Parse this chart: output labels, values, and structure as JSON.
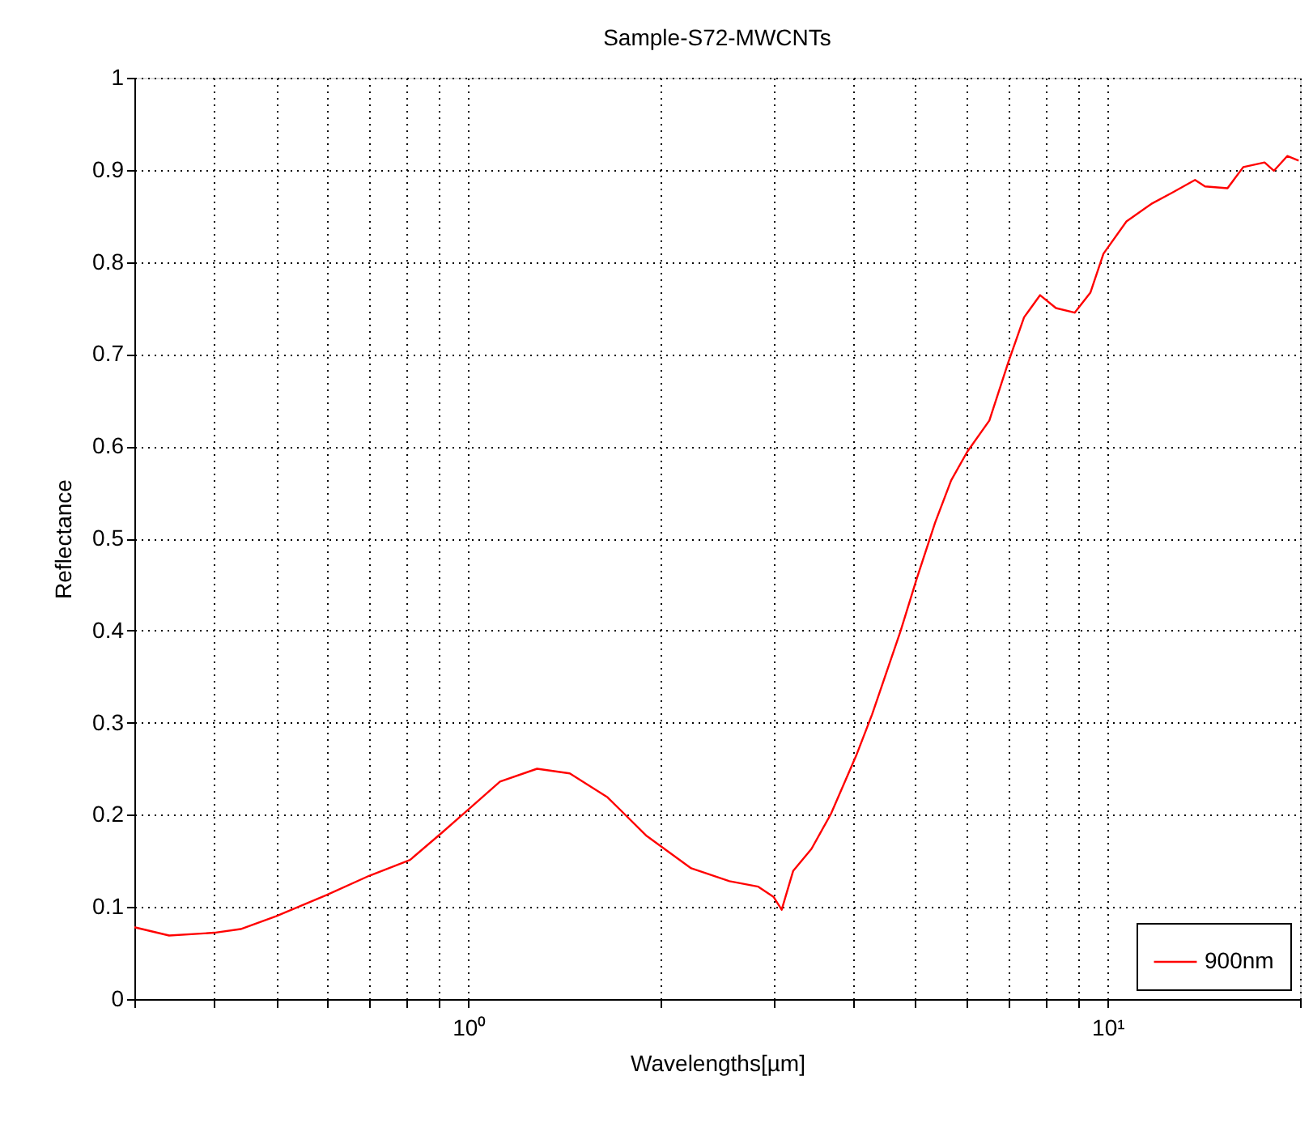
{
  "chart_data": {
    "type": "line",
    "title": "Sample-S72-MWCNTs",
    "xlabel": "Wavelengths[µm]",
    "ylabel": "Reflectance",
    "log": "x",
    "grid": true,
    "legend": "bottom right",
    "line_style": "solid",
    "marker": "none",
    "xlim": [
      0.3,
      20
    ],
    "ylim": [
      0,
      1
    ],
    "xticks": [
      {
        "value": 0.3,
        "label": null
      },
      {
        "value": 0.4,
        "label": null
      },
      {
        "value": 0.5,
        "label": null
      },
      {
        "value": 0.6,
        "label": null
      },
      {
        "value": 0.7,
        "label": null
      },
      {
        "value": 0.8,
        "label": null
      },
      {
        "value": 0.9,
        "label": null
      },
      {
        "value": 1,
        "label": "10⁰"
      },
      {
        "value": 2,
        "label": null
      },
      {
        "value": 3,
        "label": null
      },
      {
        "value": 4,
        "label": null
      },
      {
        "value": 5,
        "label": null
      },
      {
        "value": 6,
        "label": null
      },
      {
        "value": 7,
        "label": null
      },
      {
        "value": 8,
        "label": null
      },
      {
        "value": 9,
        "label": null
      },
      {
        "value": 10,
        "label": "10¹"
      },
      {
        "value": 20,
        "label": null
      }
    ],
    "yticks": [
      0,
      0.1,
      0.2,
      0.3,
      0.4,
      0.5,
      0.6,
      0.7,
      0.8,
      0.9,
      1
    ],
    "x": [
      0.3,
      0.34,
      0.4,
      0.44,
      0.5,
      0.6,
      0.7,
      0.81,
      0.91,
      1.0,
      1.12,
      1.28,
      1.44,
      1.65,
      1.9,
      2.23,
      2.56,
      2.84,
      3.0,
      3.09,
      3.22,
      3.44,
      3.69,
      4.04,
      4.28,
      4.74,
      5.02,
      5.37,
      5.69,
      6.03,
      6.53,
      6.99,
      7.4,
      7.84,
      8.3,
      8.88,
      9.4,
      9.85,
      10.7,
      11.7,
      12.6,
      13.7,
      14.2,
      15.4,
      16.3,
      17.6,
      18.2,
      19.1,
      19.9
    ],
    "series": [
      {
        "name": "900nm",
        "color": "#ff0000",
        "values": [
          0.078,
          0.069,
          0.072,
          0.076,
          0.09,
          0.113,
          0.134,
          0.151,
          0.181,
          0.206,
          0.236,
          0.25,
          0.245,
          0.219,
          0.177,
          0.142,
          0.128,
          0.122,
          0.111,
          0.097,
          0.139,
          0.163,
          0.201,
          0.264,
          0.309,
          0.399,
          0.455,
          0.517,
          0.563,
          0.594,
          0.628,
          0.691,
          0.74,
          0.764,
          0.75,
          0.745,
          0.767,
          0.809,
          0.844,
          0.863,
          0.875,
          0.889,
          0.882,
          0.88,
          0.903,
          0.908,
          0.899,
          0.915,
          0.91
        ]
      }
    ]
  }
}
